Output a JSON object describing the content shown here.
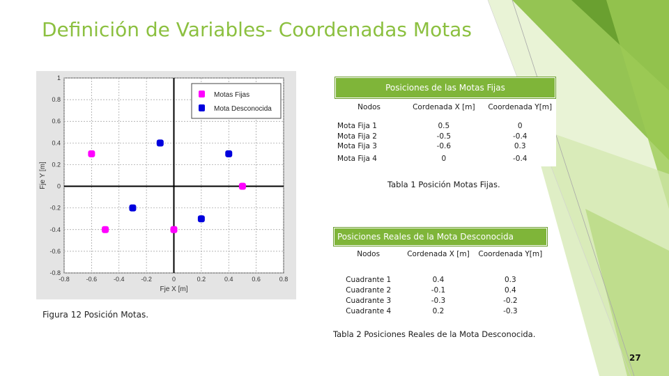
{
  "title": "Definición de Variables- Coordenadas Motas",
  "figure": {
    "caption": "Figura 12 Posición Motas.",
    "legend": [
      "Motas Fijas",
      "Mota Desconocida"
    ],
    "xlabel": "Fje X [m]",
    "ylabel": "Fje Y [m]"
  },
  "chart_data": {
    "type": "scatter",
    "xlabel": "Fje X [m]",
    "ylabel": "Fje Y [m]",
    "xlim": [
      -0.8,
      0.8
    ],
    "ylim": [
      -0.8,
      1
    ],
    "x_ticks": [
      "-0.8",
      "-0.6",
      "-0.4",
      "-0.2",
      "0",
      "0.2",
      "0.4",
      "0.6",
      "0.8"
    ],
    "y_ticks": [
      "1",
      "0.8",
      "0.6",
      "0.4",
      "0.2",
      "0",
      "-0.2",
      "-0.4",
      "-0.6",
      "-0.8"
    ],
    "grid": true,
    "legend_position": "top-right",
    "series": [
      {
        "name": "Motas Fijas",
        "color": "#ff00ff",
        "points": [
          [
            0.5,
            0
          ],
          [
            -0.5,
            -0.4
          ],
          [
            -0.6,
            0.3
          ],
          [
            0,
            -0.4
          ]
        ]
      },
      {
        "name": "Mota Desconocida",
        "color": "#0000dd",
        "points": [
          [
            0.4,
            0.3
          ],
          [
            -0.1,
            0.4
          ],
          [
            -0.3,
            -0.2
          ],
          [
            0.2,
            -0.3
          ]
        ]
      }
    ]
  },
  "table1": {
    "title": "Posiciones de las Motas Fijas",
    "headers": [
      "Nodos",
      "Cordenada X [m]",
      "Coordenada Y[m]"
    ],
    "rows": [
      [
        "Mota Fija 1",
        "0.5",
        "0"
      ],
      [
        "Mota Fija 2",
        "-0.5",
        "-0.4"
      ],
      [
        "Mota Fija 3",
        "-0.6",
        "0.3"
      ],
      [
        "Mota Fija 4",
        "0",
        "-0.4"
      ]
    ],
    "caption": "Tabla 1 Posición Motas Fijas."
  },
  "table2": {
    "title": "Posiciones Reales de la Mota Desconocida",
    "headers": [
      "Nodos",
      "Cordenada X [m]",
      "Coordenada Y[m]"
    ],
    "rows": [
      [
        "Cuadrante 1",
        "0.4",
        "0.3"
      ],
      [
        "Cuadrante 2",
        "-0.1",
        "0.4"
      ],
      [
        "Cuadrante 3",
        "-0.3",
        "-0.2"
      ],
      [
        "Cuadrante 4",
        "0.2",
        "-0.3"
      ]
    ],
    "caption": "Tabla 2 Posiciones Reales de la Mota Desconocida."
  },
  "page_number": "27",
  "colors": {
    "accent": "#8cc040",
    "header": "#7fb539"
  }
}
